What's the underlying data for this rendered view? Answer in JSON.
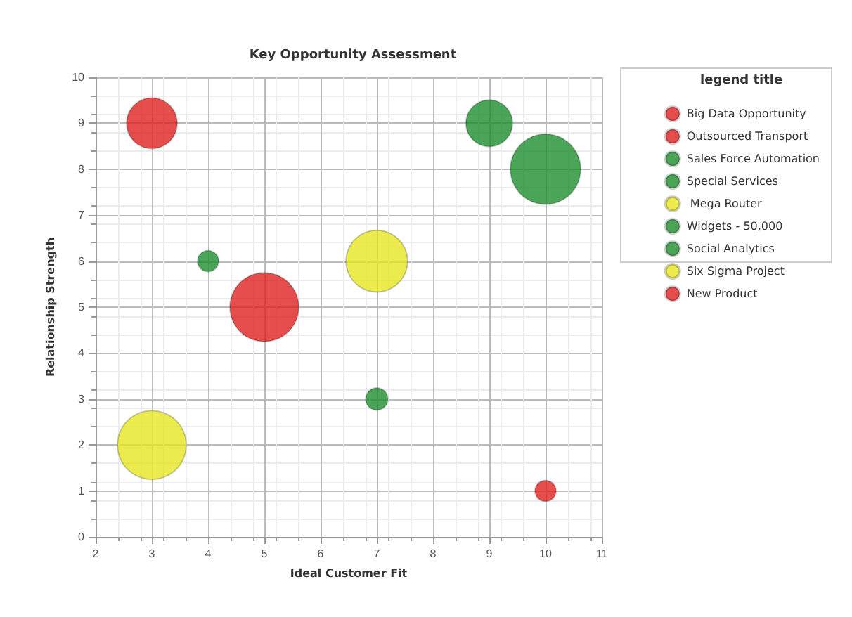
{
  "chart_data": {
    "type": "bubble",
    "title": "Key Opportunity Assessment",
    "xlabel": "Ideal Customer Fit",
    "ylabel": "Relationship Strength",
    "legend_title": "legend title",
    "legend": "top right",
    "grid": true,
    "marker": "circle",
    "xlim": [
      2,
      11
    ],
    "xticks": [
      2,
      3,
      4,
      5,
      6,
      7,
      8,
      9,
      10,
      11
    ],
    "ylim": [
      0,
      10
    ],
    "yticks": [
      0,
      1,
      2,
      3,
      4,
      5,
      6,
      7,
      8,
      9,
      10
    ],
    "series": [
      {
        "name": "Big Data Opportunity",
        "color": "#e02020",
        "x": [
          5
        ],
        "values": [
          5
        ],
        "sizes": [
          0.96
        ]
      },
      {
        "name": "Outsourced Transport",
        "color": "#e02020",
        "x": [
          3
        ],
        "values": [
          9
        ],
        "sizes": [
          0.52
        ]
      },
      {
        "name": "Sales Force Automation",
        "color": "#1e8f2e",
        "x": [
          10
        ],
        "values": [
          8
        ],
        "sizes": [
          1
        ]
      },
      {
        "name": "Special Services",
        "color": "#1e8f2e",
        "x": [
          9
        ],
        "values": [
          9
        ],
        "sizes": [
          0.44
        ]
      },
      {
        "name": " Mega Router",
        "color": "#e6e620",
        "x": [
          7
        ],
        "values": [
          6
        ],
        "sizes": [
          0.77
        ]
      },
      {
        "name": "Widgets - 50,000",
        "color": "#1e8f2e",
        "x": [
          4
        ],
        "values": [
          6
        ],
        "sizes": [
          0.09
        ]
      },
      {
        "name": "Social Analytics",
        "color": "#1e8f2e",
        "x": [
          7
        ],
        "values": [
          3
        ],
        "sizes": [
          0.1
        ]
      },
      {
        "name": "Six Sigma Project",
        "color": "#e6e620",
        "x": [
          3
        ],
        "values": [
          2
        ],
        "sizes": [
          0.96
        ]
      },
      {
        "name": "New Product",
        "color": "#e02020",
        "x": [
          10
        ],
        "values": [
          1
        ],
        "sizes": [
          0.09
        ]
      }
    ]
  }
}
